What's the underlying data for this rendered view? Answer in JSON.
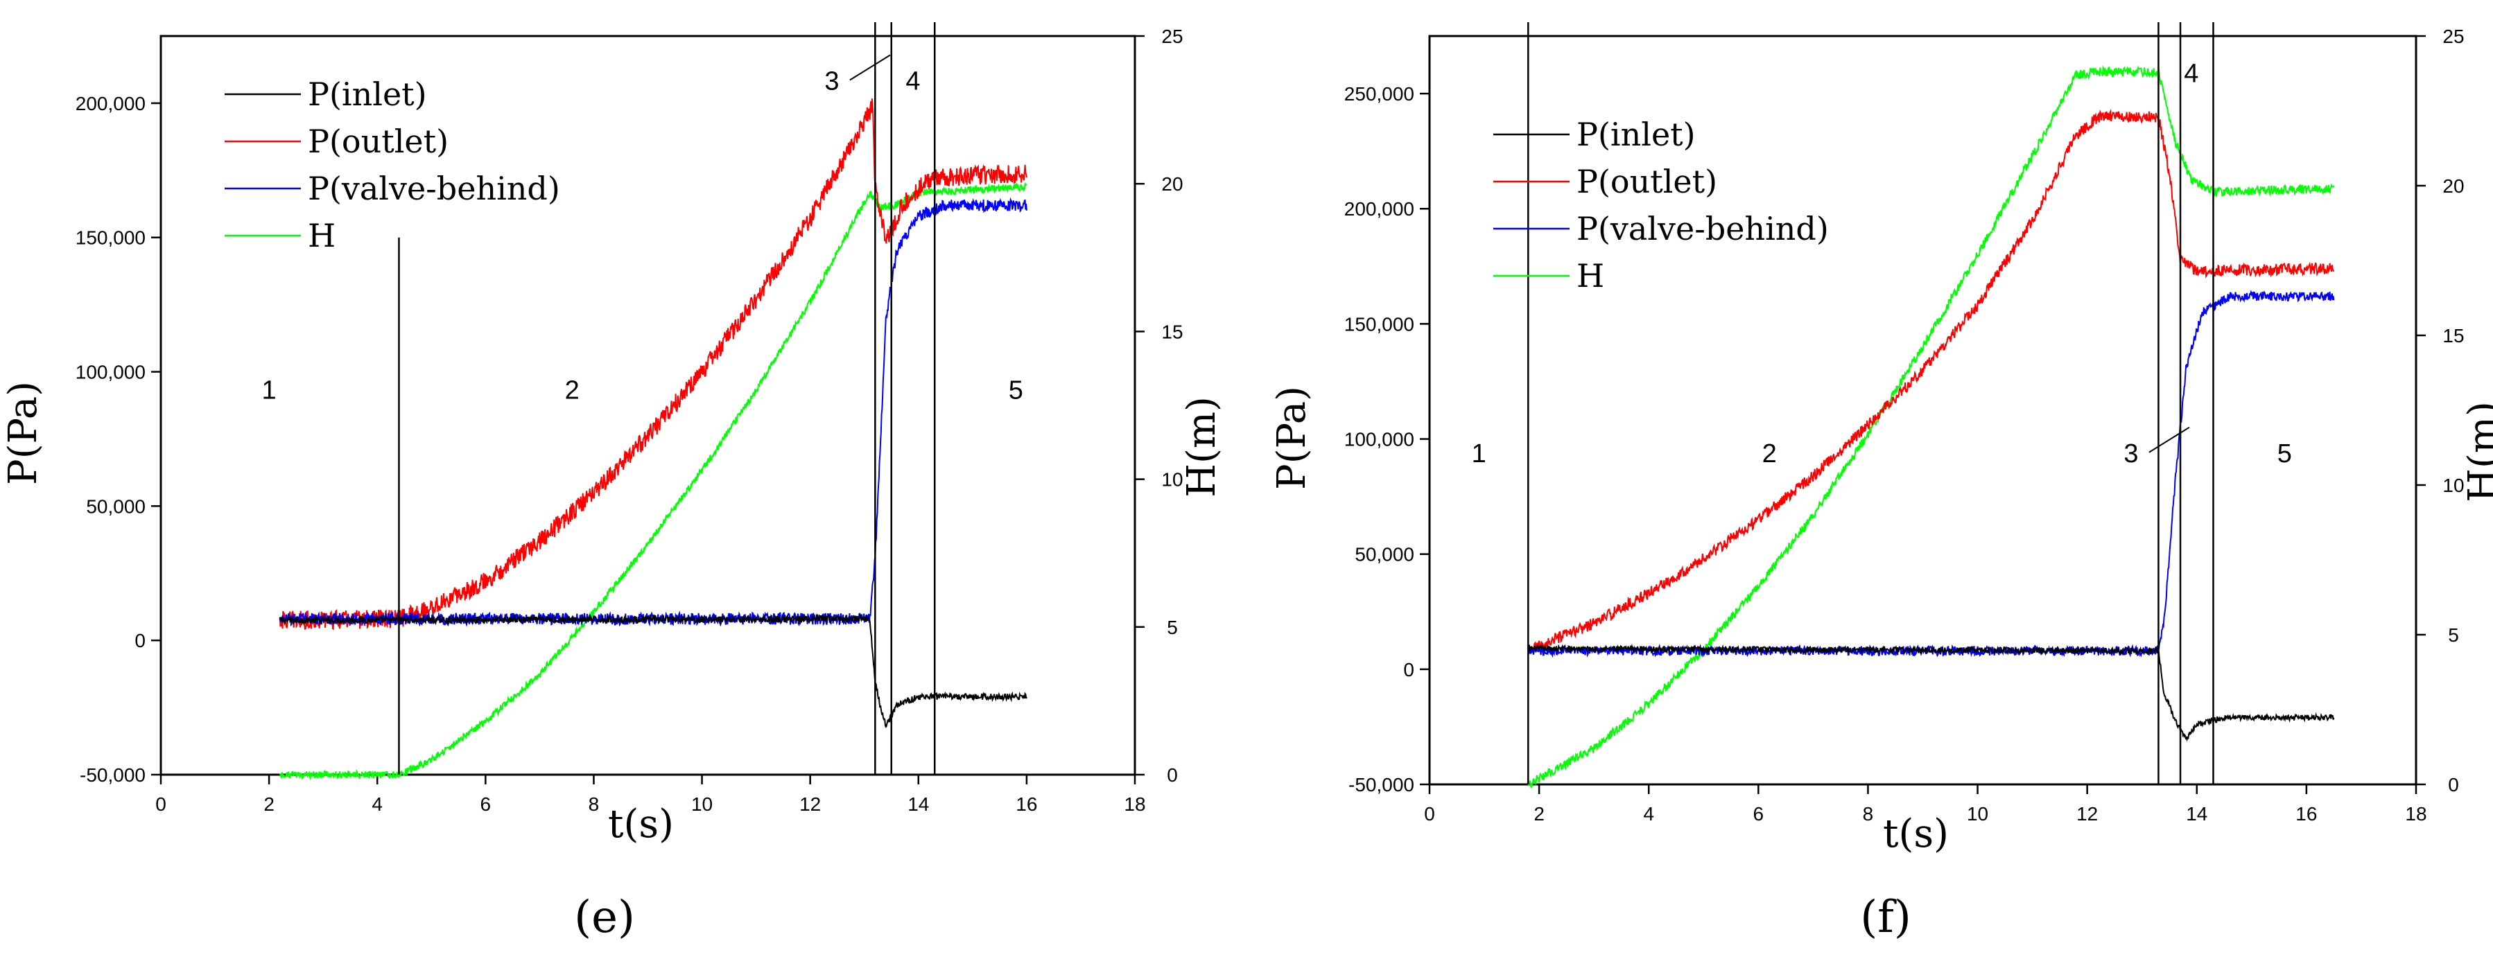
{
  "chart_data": [
    {
      "type": "line",
      "caption": "(e)",
      "xlabel": "t(s)",
      "ylabel": "P(Pa)",
      "y2label": "H(m)",
      "xlim": [
        0,
        18
      ],
      "ylim": [
        -50000,
        225000
      ],
      "y2lim": [
        0,
        25
      ],
      "xticks": [
        "0",
        "2",
        "4",
        "6",
        "8",
        "10",
        "12",
        "14",
        "16",
        "18"
      ],
      "yticks": [
        "-50,000",
        "0",
        "50,000",
        "100,000",
        "150,000",
        "200,000"
      ],
      "y2ticks": [
        "0",
        "5",
        "10",
        "15",
        "20",
        "25"
      ],
      "legend": [
        "P(inlet)",
        "P(outlet)",
        "P(valve-behind)",
        "H"
      ],
      "phase_lines": [
        4.4,
        13.2,
        13.5,
        14.3
      ],
      "phase_labels": [
        {
          "text": "1",
          "x": 2.0,
          "y": 90000
        },
        {
          "text": "2",
          "x": 7.6,
          "y": 90000
        },
        {
          "text": "3",
          "x": 12.4,
          "y": 205000
        },
        {
          "text": "4",
          "x": 13.9,
          "y": 205000
        },
        {
          "text": "5",
          "x": 15.8,
          "y": 90000
        }
      ],
      "series": [
        {
          "name": "P(inlet)",
          "color": "#000000",
          "axis": "left",
          "noise": 1200,
          "points": [
            [
              2.2,
              7500
            ],
            [
              13.1,
              8000
            ],
            [
              13.2,
              -15000
            ],
            [
              13.3,
              -25000
            ],
            [
              13.4,
              -32000
            ],
            [
              13.6,
              -24000
            ],
            [
              14.0,
              -21000
            ],
            [
              16.0,
              -21000
            ]
          ]
        },
        {
          "name": "P(outlet)",
          "color": "#ff0000",
          "axis": "left",
          "noise": 3500,
          "points": [
            [
              2.2,
              7500
            ],
            [
              4.4,
              8000
            ],
            [
              5.0,
              12000
            ],
            [
              6.0,
              22000
            ],
            [
              7.0,
              37000
            ],
            [
              8.0,
              55000
            ],
            [
              9.0,
              76000
            ],
            [
              10.0,
              100000
            ],
            [
              11.0,
              127000
            ],
            [
              12.0,
              157000
            ],
            [
              13.0,
              193000
            ],
            [
              13.15,
              199000
            ],
            [
              13.2,
              170000
            ],
            [
              13.4,
              148000
            ],
            [
              13.7,
              162000
            ],
            [
              14.2,
              172000
            ],
            [
              16.0,
              174000
            ]
          ]
        },
        {
          "name": "P(valve-behind)",
          "color": "#0000ff",
          "axis": "left",
          "noise": 2200,
          "points": [
            [
              2.2,
              8000
            ],
            [
              13.1,
              8000
            ],
            [
              13.2,
              30000
            ],
            [
              13.4,
              120000
            ],
            [
              13.6,
              145000
            ],
            [
              14.0,
              158000
            ],
            [
              14.5,
              162000
            ],
            [
              16.0,
              162000
            ]
          ]
        },
        {
          "name": "H",
          "color": "#00ff00",
          "axis": "right",
          "noise": 0.12,
          "points": [
            [
              2.2,
              0
            ],
            [
              4.4,
              0
            ],
            [
              5.0,
              0.5
            ],
            [
              6.0,
              1.8
            ],
            [
              7.0,
              3.4
            ],
            [
              8.0,
              5.5
            ],
            [
              9.0,
              7.8
            ],
            [
              10.0,
              10.3
            ],
            [
              11.0,
              13.0
            ],
            [
              12.0,
              16.0
            ],
            [
              13.1,
              19.7
            ],
            [
              13.3,
              19.2
            ],
            [
              13.6,
              19.3
            ],
            [
              14.0,
              19.7
            ],
            [
              16.0,
              19.9
            ]
          ]
        }
      ]
    },
    {
      "type": "line",
      "caption": "(f)",
      "xlabel": "t(s)",
      "ylabel": "P(Pa)",
      "y2label": "H(m)",
      "xlim": [
        0,
        18
      ],
      "ylim": [
        -50000,
        275000
      ],
      "y2lim": [
        0,
        25
      ],
      "xticks": [
        "0",
        "2",
        "4",
        "6",
        "8",
        "10",
        "12",
        "14",
        "16",
        "18"
      ],
      "yticks": [
        "-50,000",
        "0",
        "50,000",
        "100,000",
        "150,000",
        "200,000",
        "250,000"
      ],
      "y2ticks": [
        "0",
        "5",
        "10",
        "15",
        "20",
        "25"
      ],
      "legend": [
        "P(inlet)",
        "P(outlet)",
        "P(valve-behind)",
        "H"
      ],
      "phase_lines": [
        1.8,
        13.3,
        13.7,
        14.3
      ],
      "phase_labels": [
        {
          "text": "1",
          "x": 0.9,
          "y": 90000
        },
        {
          "text": "2",
          "x": 6.2,
          "y": 90000
        },
        {
          "text": "3",
          "x": 12.8,
          "y": 90000
        },
        {
          "text": "4",
          "x": 13.9,
          "y": 255000
        },
        {
          "text": "5",
          "x": 15.6,
          "y": 90000
        }
      ],
      "series": [
        {
          "name": "P(inlet)",
          "color": "#000000",
          "axis": "left",
          "noise": 1200,
          "points": [
            [
              1.8,
              9000
            ],
            [
              13.3,
              8000
            ],
            [
              13.4,
              -10000
            ],
            [
              13.6,
              -22000
            ],
            [
              13.8,
              -30000
            ],
            [
              14.0,
              -24000
            ],
            [
              14.5,
              -21000
            ],
            [
              16.5,
              -21000
            ]
          ]
        },
        {
          "name": "P(outlet)",
          "color": "#ff0000",
          "axis": "left",
          "noise": 2500,
          "points": [
            [
              1.8,
              8000
            ],
            [
              3.0,
              20000
            ],
            [
              4.0,
              33000
            ],
            [
              5.0,
              48000
            ],
            [
              6.0,
              65000
            ],
            [
              7.0,
              84000
            ],
            [
              8.0,
              106000
            ],
            [
              9.0,
              130000
            ],
            [
              10.0,
              158000
            ],
            [
              11.0,
              195000
            ],
            [
              11.8,
              232000
            ],
            [
              12.2,
              240000
            ],
            [
              13.3,
              240000
            ],
            [
              13.5,
              215000
            ],
            [
              13.7,
              178000
            ],
            [
              14.0,
              173000
            ],
            [
              16.5,
              174000
            ]
          ]
        },
        {
          "name": "P(valve-behind)",
          "color": "#0000ff",
          "axis": "left",
          "noise": 2000,
          "points": [
            [
              1.8,
              8000
            ],
            [
              13.3,
              8000
            ],
            [
              13.4,
              20000
            ],
            [
              13.6,
              80000
            ],
            [
              13.8,
              130000
            ],
            [
              14.1,
              155000
            ],
            [
              14.6,
              162000
            ],
            [
              16.5,
              162000
            ]
          ]
        },
        {
          "name": "H",
          "color": "#00ff00",
          "axis": "right",
          "noise": 0.15,
          "points": [
            [
              1.8,
              0
            ],
            [
              3.0,
              1.2
            ],
            [
              4.0,
              2.7
            ],
            [
              5.0,
              4.5
            ],
            [
              6.0,
              6.6
            ],
            [
              7.0,
              9.0
            ],
            [
              8.0,
              11.7
            ],
            [
              9.0,
              14.6
            ],
            [
              10.0,
              17.7
            ],
            [
              11.0,
              21.0
            ],
            [
              11.8,
              23.7
            ],
            [
              12.2,
              23.8
            ],
            [
              13.3,
              23.8
            ],
            [
              13.6,
              21.5
            ],
            [
              13.9,
              20.2
            ],
            [
              14.3,
              19.8
            ],
            [
              16.5,
              19.9
            ]
          ]
        }
      ]
    }
  ]
}
